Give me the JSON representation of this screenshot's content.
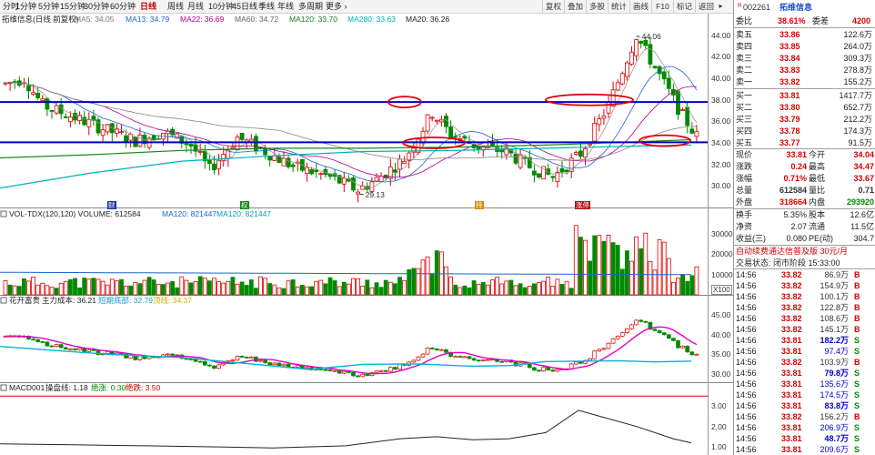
{
  "toolbar": {
    "timeframes": [
      "分时",
      "1分钟",
      "5分钟",
      "15分钟",
      "30分钟",
      "60分钟",
      "日线",
      "周线",
      "月线",
      "10分钟",
      "45日线",
      "季线",
      "年线",
      "多周期",
      "更多 ›"
    ],
    "active_index": 6,
    "buttons": [
      "复权",
      "叠加",
      "多股",
      "统计",
      "画线",
      "F10",
      "标记",
      "返回"
    ]
  },
  "main_chart": {
    "title": "拓维信息(日线 前复权)",
    "ma": [
      {
        "label": "MA5: 34.05",
        "color": "#777777"
      },
      {
        "label": "MA13: 34.79",
        "color": "#1a66cc"
      },
      {
        "label": "MA22: 36.69",
        "color": "#b0008a"
      },
      {
        "label": "MA60: 34.72",
        "color": "#666666"
      },
      {
        "label": "MA120: 33.70",
        "color": "#1a7a1a"
      },
      {
        "label": "MA280: 33.63",
        "color": "#00b0c0"
      },
      {
        "label": "MA20: 36.26",
        "color": "#222222"
      }
    ],
    "price_labels": [
      "44.00",
      "42.00",
      "40.00",
      "38.00",
      "36.00",
      "34.00",
      "32.00",
      "30.00"
    ],
    "price_values": [
      44,
      42,
      40,
      38,
      36,
      34,
      32,
      30
    ],
    "annotations": {
      "high": "44.06",
      "low": "29.13",
      "high_price": 44.06,
      "low_price": 29.13
    },
    "markers": [
      "财",
      "权",
      "持",
      "涨停"
    ]
  },
  "volume": {
    "title": "VOL-TDX(120,120) VOLUME: 612584",
    "ma120": "MA120: 821447",
    "ma120b": "MA120: 821447",
    "axis": [
      "30000",
      "20000",
      "10000"
    ],
    "axis_values": [
      30000,
      20000,
      10000
    ],
    "unit": "X100"
  },
  "hk_indicator": {
    "name": "花开富贵",
    "cost": "主力成本: 36.21",
    "l1": "短期底部: 32.79",
    "l2": "顶线: 34.37",
    "axis": [
      "45.00",
      "40.00",
      "35.00",
      "30.00"
    ],
    "axis_values": [
      45,
      40,
      35,
      30
    ]
  },
  "macd": {
    "name": "MACD001",
    "p1": "操盘线: 1.18",
    "p2": "绝涨: 0.30",
    "p3": "绝跌: 3.50",
    "axis": [
      "3.00",
      "2.00",
      "1.00"
    ],
    "axis_values": [
      3,
      2,
      1
    ]
  },
  "quote": {
    "code": "002261",
    "name": "拓维信息",
    "rz": "R",
    "weibi_label": "委比",
    "weibi": "38.61%",
    "weicha_label": "委差",
    "weicha": "4200",
    "asks": [
      {
        "label": "卖五",
        "price": "33.86",
        "vol": "122.6万"
      },
      {
        "label": "卖四",
        "price": "33.85",
        "vol": "264.0万"
      },
      {
        "label": "卖三",
        "price": "33.84",
        "vol": "309.3万"
      },
      {
        "label": "卖二",
        "price": "33.83",
        "vol": "278.8万"
      },
      {
        "label": "卖一",
        "price": "33.82",
        "vol": "155.2万"
      }
    ],
    "bids": [
      {
        "label": "买一",
        "price": "33.81",
        "vol": "1417.7万"
      },
      {
        "label": "买二",
        "price": "33.80",
        "vol": "652.7万"
      },
      {
        "label": "买三",
        "price": "33.79",
        "vol": "212.2万"
      },
      {
        "label": "买四",
        "price": "33.78",
        "vol": "174.3万"
      },
      {
        "label": "买五",
        "price": "33.77",
        "vol": "91.5万"
      }
    ],
    "stats": [
      {
        "l1": "现价",
        "v1": "33.81",
        "c1": "red",
        "l2": "今开",
        "v2": "34.04",
        "c2": "red"
      },
      {
        "l1": "涨跌",
        "v1": "0.24",
        "c1": "red",
        "l2": "最高",
        "v2": "34.47",
        "c2": "red"
      },
      {
        "l1": "涨幅",
        "v1": "0.71%",
        "c1": "red",
        "l2": "最低",
        "v2": "33.67",
        "c2": "red"
      },
      {
        "l1": "总量",
        "v1": "612584",
        "c1": "gray",
        "l2": "量比",
        "v2": "0.71",
        "c2": "gray"
      },
      {
        "l1": "外盘",
        "v1": "318664",
        "c1": "red",
        "l2": "内盘",
        "v2": "293920",
        "c2": "green"
      }
    ],
    "stats2": [
      {
        "l1": "换手",
        "v1": "5.35%",
        "l2": "股本",
        "v2": "12.6亿"
      },
      {
        "l1": "净资",
        "v1": "2.07",
        "l2": "流通",
        "v2": "11.5亿"
      },
      {
        "l1": "收益(三)",
        "v1": "0.080",
        "l2": "PE(动)",
        "v2": "304.7"
      }
    ],
    "promo": "自动续费通达信普及版 30元/月",
    "status": "交易状态: 闭市阶段 15:33:00",
    "ticks": [
      {
        "t": "14:56",
        "p": "33.82",
        "v": "86.9万",
        "s": "B"
      },
      {
        "t": "14:56",
        "p": "33.82",
        "v": "154.9万",
        "s": "B"
      },
      {
        "t": "14:56",
        "p": "33.82",
        "v": "100.1万",
        "s": "B"
      },
      {
        "t": "14:56",
        "p": "33.82",
        "v": "122.8万",
        "s": "B"
      },
      {
        "t": "14:56",
        "p": "33.82",
        "v": "108.6万",
        "s": "B"
      },
      {
        "t": "14:56",
        "p": "33.82",
        "v": "145.1万",
        "s": "B"
      },
      {
        "t": "14:56",
        "p": "33.81",
        "v": "182.2万",
        "s": "S"
      },
      {
        "t": "14:56",
        "p": "33.81",
        "v": "97.4万",
        "s": "S"
      },
      {
        "t": "14:56",
        "p": "33.82",
        "v": "103.9万",
        "s": "B"
      },
      {
        "t": "14:56",
        "p": "33.81",
        "v": "79.8万",
        "s": "S"
      },
      {
        "t": "14:56",
        "p": "33.81",
        "v": "135.6万",
        "s": "S"
      },
      {
        "t": "14:56",
        "p": "33.81",
        "v": "174.5万",
        "s": "S"
      },
      {
        "t": "14:56",
        "p": "33.81",
        "v": "83.8万",
        "s": "S"
      },
      {
        "t": "14:56",
        "p": "33.82",
        "v": "156.2万",
        "s": "B"
      },
      {
        "t": "14:56",
        "p": "33.81",
        "v": "206.9万",
        "s": "S"
      },
      {
        "t": "14:56",
        "p": "33.81",
        "v": "48.7万",
        "s": "S"
      },
      {
        "t": "14:56",
        "p": "33.81",
        "v": "209.6万",
        "s": "S"
      }
    ]
  }
}
